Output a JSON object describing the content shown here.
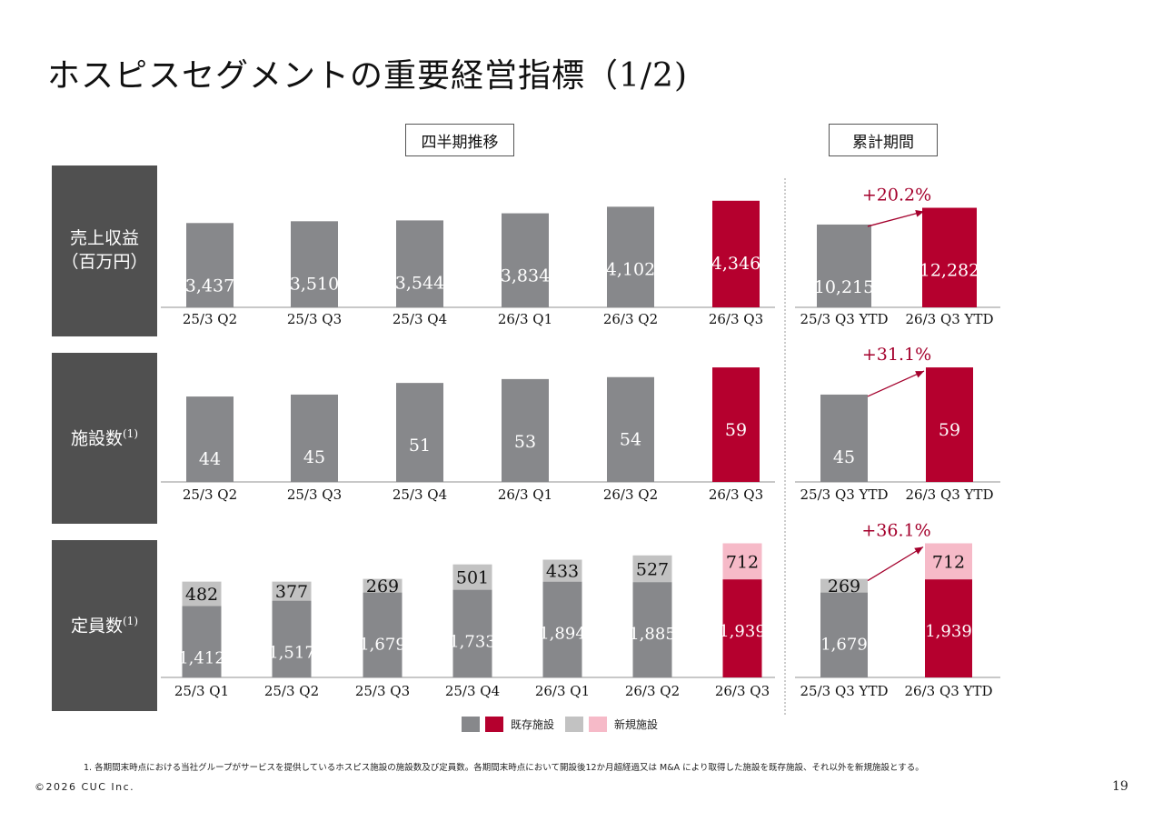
{
  "title": "ホスピスセグメントの重要経営指標（1/2)",
  "header_quarterly": "四半期推移",
  "header_cumulative": "累計期間",
  "row_labels": {
    "revenue_line1": "売上収益",
    "revenue_line2": "（百万円）",
    "facilities": "施設数",
    "facilities_note": "(1)",
    "capacity": "定員数",
    "capacity_note": "(1)"
  },
  "legend": {
    "existing_label": "既存施設",
    "new_label": "新規施設"
  },
  "colors": {
    "existing_past": "#87888b",
    "existing_current": "#b5002e",
    "new_past": "#c2c2c2",
    "new_current": "#f6bac8",
    "label_bg": "#505050",
    "growth_text": "#a4002c"
  },
  "footnote": "1. 各期間末時点における当社グループがサービスを提供しているホスピス施設の施設数及び定員数。各期間末時点において開設後12か月超経過又は M&A により取得した施設を既存施設、それ以外を新規施設とする。",
  "copyright": "©2026 CUC Inc.",
  "page_number": "19",
  "chart_data": [
    {
      "id": "revenue_quarterly",
      "type": "bar",
      "categories": [
        "25/3 Q2",
        "25/3 Q3",
        "25/3 Q4",
        "26/3 Q1",
        "26/3 Q2",
        "26/3 Q3"
      ],
      "values": [
        3437,
        3510,
        3544,
        3834,
        4102,
        4346
      ],
      "value_labels": [
        "3,437",
        "3,510",
        "3,544",
        "3,834",
        "4,102",
        "4,346"
      ],
      "highlight_index": 5,
      "ylim": [
        0,
        4560
      ]
    },
    {
      "id": "revenue_ytd",
      "type": "bar",
      "categories": [
        "25/3 Q3 YTD",
        "26/3 Q3 YTD"
      ],
      "values": [
        10215,
        12282
      ],
      "value_labels": [
        "10,215",
        "12,282"
      ],
      "highlight_index": 1,
      "growth": "+20.2%",
      "ylim": [
        0,
        12900
      ]
    },
    {
      "id": "facilities_quarterly",
      "type": "bar",
      "categories": [
        "25/3 Q2",
        "25/3 Q3",
        "25/3 Q4",
        "26/3 Q1",
        "26/3 Q2",
        "26/3 Q3"
      ],
      "values": [
        44,
        45,
        51,
        53,
        54,
        59
      ],
      "value_labels": [
        "44",
        "45",
        "51",
        "53",
        "54",
        "59"
      ],
      "highlight_index": 5,
      "ylim": [
        0,
        59.5
      ]
    },
    {
      "id": "facilities_ytd",
      "type": "bar",
      "categories": [
        "25/3 Q3 YTD",
        "26/3 Q3 YTD"
      ],
      "values": [
        45,
        59
      ],
      "value_labels": [
        "45",
        "59"
      ],
      "highlight_index": 1,
      "growth": "+31.1%",
      "ylim": [
        0,
        59.5
      ]
    },
    {
      "id": "capacity_quarterly",
      "type": "stacked_bar",
      "categories": [
        "25/3 Q1",
        "25/3 Q2",
        "25/3 Q3",
        "25/3 Q4",
        "26/3 Q1",
        "26/3 Q2",
        "26/3 Q3"
      ],
      "series": [
        {
          "name": "既存施設",
          "values": [
            1412,
            1517,
            1679,
            1733,
            1894,
            1885,
            1939
          ],
          "labels": [
            "1,412",
            "1,517",
            "1,679",
            "1,733",
            "1,894",
            "1,885",
            "1,939"
          ]
        },
        {
          "name": "新規施設",
          "values": [
            482,
            377,
            269,
            501,
            433,
            527,
            712
          ],
          "labels": [
            "482",
            "377",
            "269",
            "501",
            "433",
            "527",
            "712"
          ]
        }
      ],
      "highlight_index": 6,
      "ylim": [
        0,
        2660
      ]
    },
    {
      "id": "capacity_ytd",
      "type": "stacked_bar",
      "categories": [
        "25/3 Q3 YTD",
        "26/3 Q3 YTD"
      ],
      "series": [
        {
          "name": "既存施設",
          "values": [
            1679,
            1939
          ],
          "labels": [
            "1,679",
            "1,939"
          ]
        },
        {
          "name": "新規施設",
          "values": [
            269,
            712
          ],
          "labels": [
            "269",
            "712"
          ]
        }
      ],
      "highlight_index": 1,
      "growth": "+36.1%",
      "ylim": [
        0,
        2660
      ]
    }
  ]
}
